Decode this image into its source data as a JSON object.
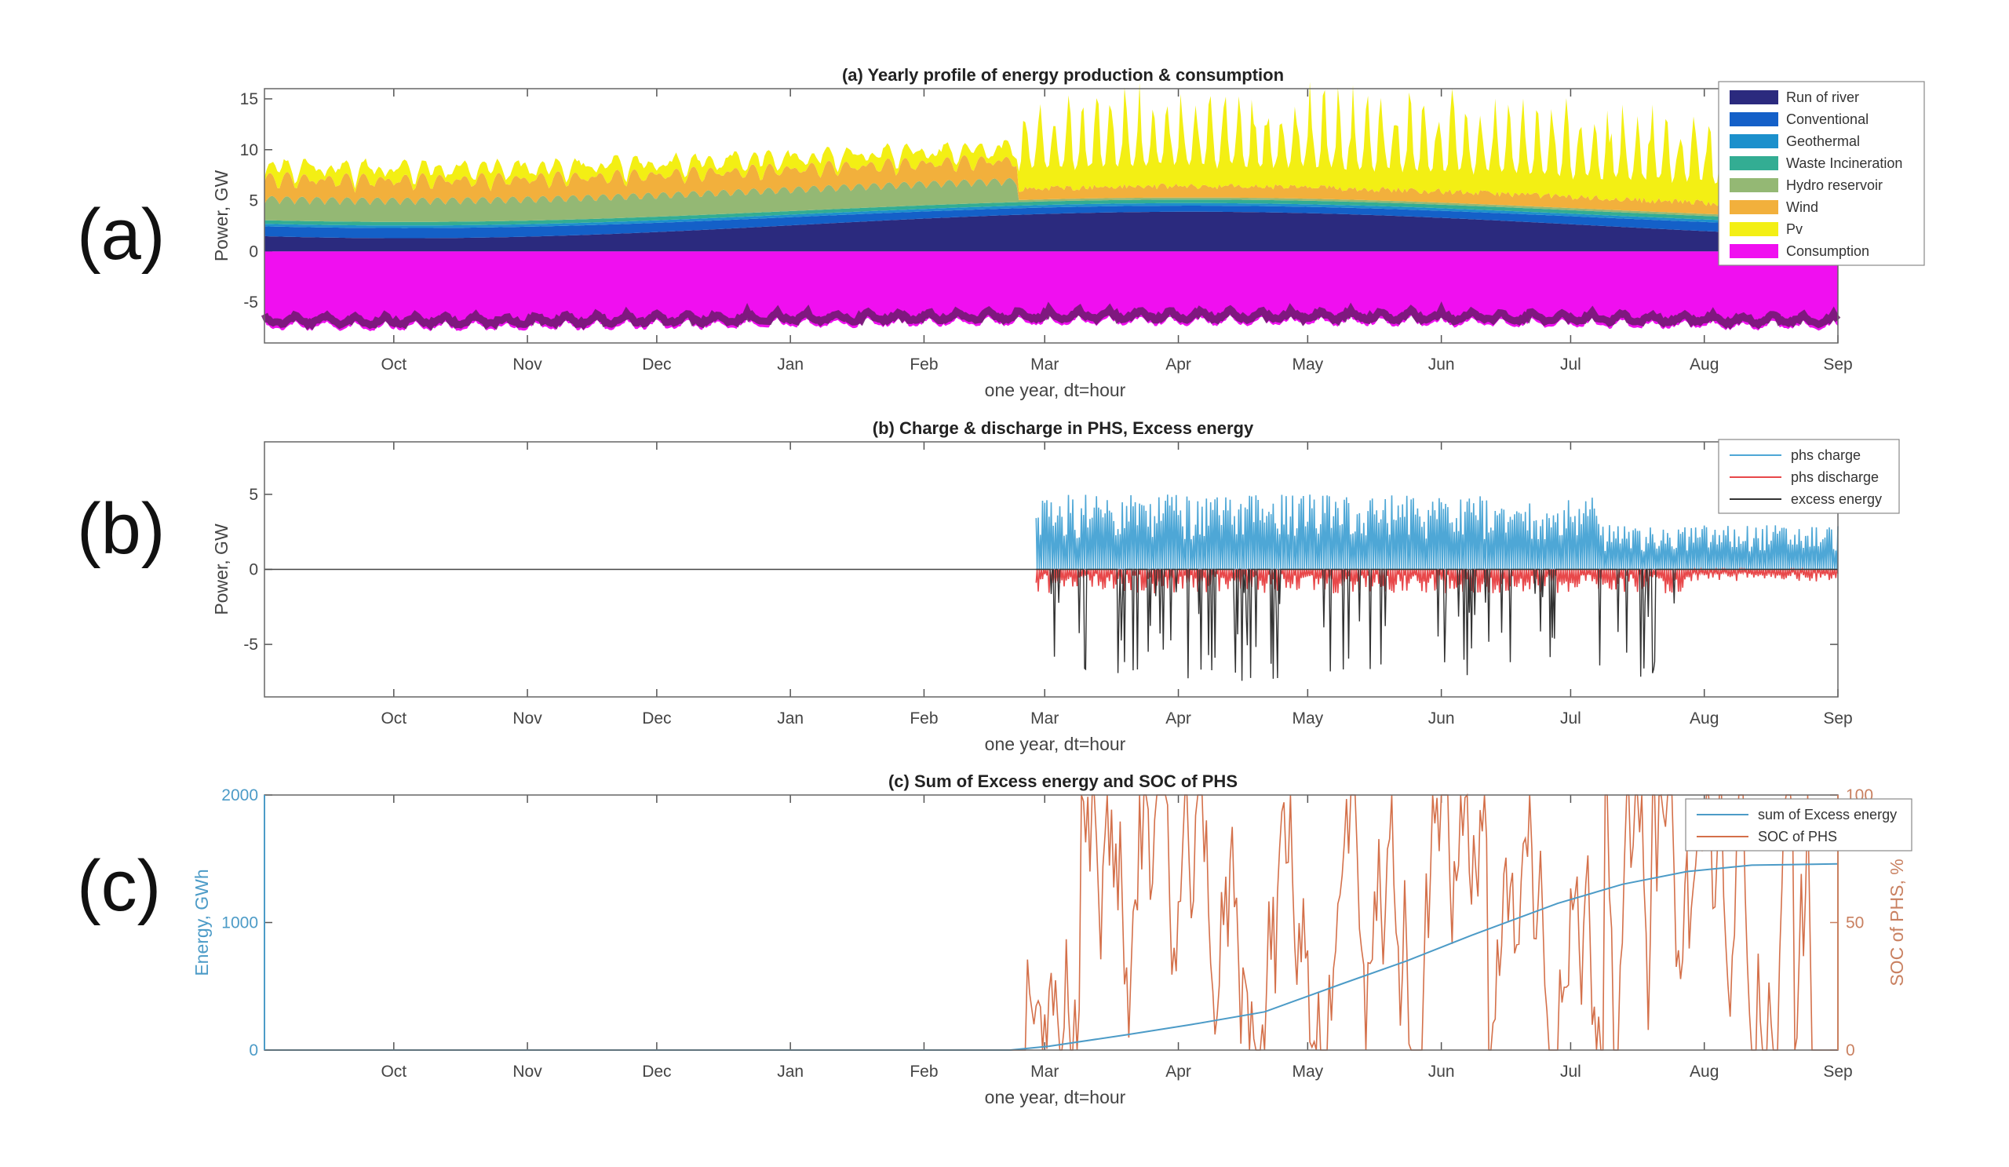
{
  "panel_labels": [
    "(a)",
    "(b)",
    "(c)"
  ],
  "months": [
    "Oct",
    "Nov",
    "Dec",
    "Jan",
    "Feb",
    "Mar",
    "Apr",
    "May",
    "Jun",
    "Jul",
    "Aug",
    "Sep"
  ],
  "chart_data": [
    {
      "id": "a",
      "type": "area",
      "title": "(a) Yearly profile of energy production & consumption",
      "xlabel": "one year, dt=hour",
      "ylabel": "Power, GW",
      "xlim": [
        0,
        365
      ],
      "ylim": [
        -9,
        16
      ],
      "yticks": [
        15,
        10,
        5,
        0,
        -5
      ],
      "legend": {
        "position": "top-right",
        "bg": "#ffffff"
      },
      "series": [
        {
          "name": "Run of river",
          "color": "#2b2a7e"
        },
        {
          "name": "Conventional",
          "color": "#1460c8"
        },
        {
          "name": "Geothermal",
          "color": "#1c90cc"
        },
        {
          "name": "Waste Incineration",
          "color": "#33ad93"
        },
        {
          "name": "Hydro reservoir",
          "color": "#94b874"
        },
        {
          "name": "Wind",
          "color": "#f2b03c"
        },
        {
          "name": "Pv",
          "color": "#f3ef14"
        },
        {
          "name": "Consumption",
          "color": "#f00ff0"
        }
      ]
    },
    {
      "id": "b",
      "type": "line",
      "title": "(b) Charge & discharge in PHS, Excess energy",
      "xlabel": "one year, dt=hour",
      "ylabel": "Power, GW",
      "xlim": [
        0,
        365
      ],
      "ylim": [
        -8.5,
        8.5
      ],
      "yticks": [
        5,
        0,
        -5
      ],
      "legend": {
        "position": "top-right"
      },
      "series": [
        {
          "name": "phs charge",
          "color": "#4ea7d6"
        },
        {
          "name": "phs discharge",
          "color": "#e8484a"
        },
        {
          "name": "excess energy",
          "color": "#333333"
        }
      ]
    },
    {
      "id": "c",
      "type": "line",
      "title": "(c) Sum of Excess energy and SOC of PHS",
      "xlabel": "one year, dt=hour",
      "ylabel": "Energy, GWh",
      "ylabel_right": "SOC of PHS, %",
      "xlim": [
        0,
        365
      ],
      "ylim": [
        0,
        2000
      ],
      "ylim_right": [
        0,
        100
      ],
      "yticks": [
        2000,
        1000,
        0
      ],
      "yticks_right": [
        100,
        50,
        0
      ],
      "legend": {
        "position": "top-right"
      },
      "series": [
        {
          "name": "sum of Excess energy",
          "color": "#4c9bc7",
          "points": [
            [
              0,
              0
            ],
            [
              173,
              0
            ],
            [
              182,
              30
            ],
            [
              200,
              120
            ],
            [
              215,
              200
            ],
            [
              232,
              300
            ],
            [
              250,
              520
            ],
            [
              265,
              700
            ],
            [
              280,
              900
            ],
            [
              300,
              1150
            ],
            [
              315,
              1300
            ],
            [
              330,
              1400
            ],
            [
              345,
              1450
            ],
            [
              365,
              1460
            ]
          ]
        },
        {
          "name": "SOC of PHS",
          "color": "#d4704a"
        }
      ]
    }
  ]
}
